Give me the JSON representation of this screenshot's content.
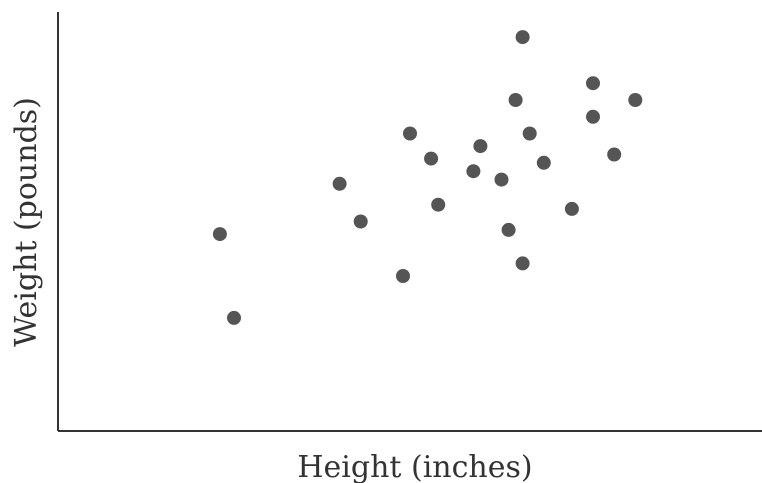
{
  "chart_data": {
    "type": "scatter",
    "title": "",
    "xlabel": "Height (inches)",
    "ylabel": "Weight (pounds)",
    "xlim": [
      0,
      100
    ],
    "ylim": [
      0,
      100
    ],
    "grid": false,
    "legend": "none",
    "point_color": "#555555",
    "axis_color": "#333333",
    "series": [
      {
        "points": [
          {
            "x": 23,
            "y": 47
          },
          {
            "x": 25,
            "y": 27
          },
          {
            "x": 40,
            "y": 59
          },
          {
            "x": 43,
            "y": 50
          },
          {
            "x": 49,
            "y": 37
          },
          {
            "x": 50,
            "y": 71
          },
          {
            "x": 53,
            "y": 65
          },
          {
            "x": 54,
            "y": 54
          },
          {
            "x": 59,
            "y": 62
          },
          {
            "x": 60,
            "y": 68
          },
          {
            "x": 63,
            "y": 60
          },
          {
            "x": 64,
            "y": 48
          },
          {
            "x": 65,
            "y": 79
          },
          {
            "x": 66,
            "y": 94
          },
          {
            "x": 66,
            "y": 40
          },
          {
            "x": 67,
            "y": 71
          },
          {
            "x": 69,
            "y": 64
          },
          {
            "x": 73,
            "y": 53
          },
          {
            "x": 76,
            "y": 75
          },
          {
            "x": 76,
            "y": 83
          },
          {
            "x": 79,
            "y": 66
          },
          {
            "x": 82,
            "y": 79
          }
        ]
      }
    ]
  }
}
